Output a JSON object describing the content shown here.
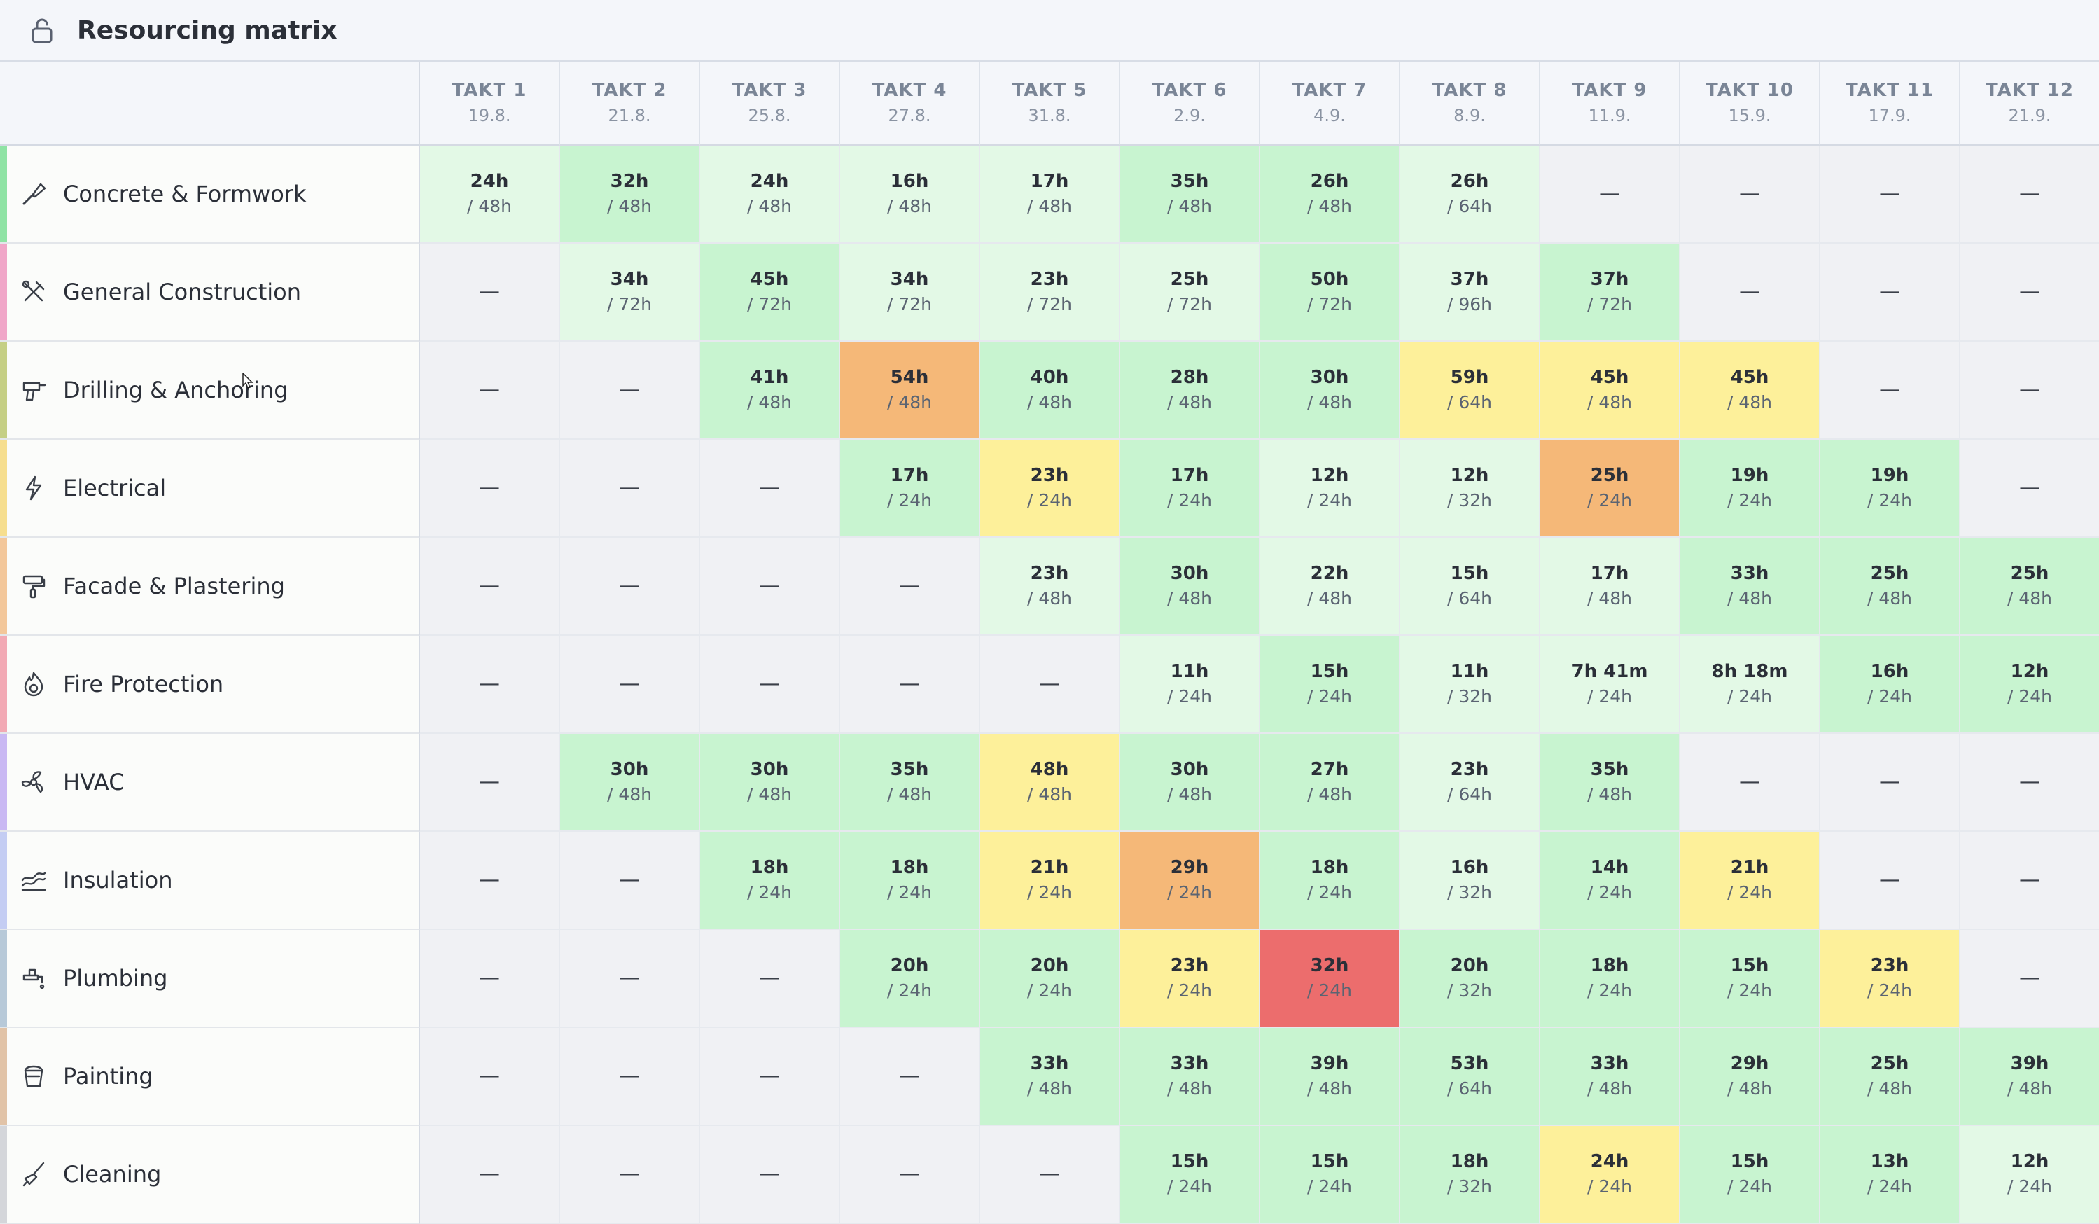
{
  "header": {
    "title": "Resourcing matrix",
    "icon": "unlock-icon"
  },
  "colors": {
    "empty": "#f0f1f4",
    "light_green": "#e3f9e6",
    "green": "#c8f4d0",
    "yellow": "#fdf09a",
    "orange": "#f5b878",
    "red": "#ec6d6d"
  },
  "columns": [
    {
      "name": "TAKT 1",
      "date": "19.8."
    },
    {
      "name": "TAKT 2",
      "date": "21.8."
    },
    {
      "name": "TAKT 3",
      "date": "25.8."
    },
    {
      "name": "TAKT 4",
      "date": "27.8."
    },
    {
      "name": "TAKT 5",
      "date": "31.8."
    },
    {
      "name": "TAKT 6",
      "date": "2.9."
    },
    {
      "name": "TAKT 7",
      "date": "4.9."
    },
    {
      "name": "TAKT 8",
      "date": "8.9."
    },
    {
      "name": "TAKT 9",
      "date": "11.9."
    },
    {
      "name": "TAKT 10",
      "date": "15.9."
    },
    {
      "name": "TAKT 11",
      "date": "17.9."
    },
    {
      "name": "TAKT 12",
      "date": "21.9."
    }
  ],
  "rows": [
    {
      "name": "Concrete & Formwork",
      "icon": "trowel-icon",
      "stripe": "#8fe3a4",
      "cells": [
        {
          "used": "24h",
          "cap": "/ 48h",
          "level": "light_green"
        },
        {
          "used": "32h",
          "cap": "/ 48h",
          "level": "green"
        },
        {
          "used": "24h",
          "cap": "/ 48h",
          "level": "light_green"
        },
        {
          "used": "16h",
          "cap": "/ 48h",
          "level": "light_green"
        },
        {
          "used": "17h",
          "cap": "/ 48h",
          "level": "light_green"
        },
        {
          "used": "35h",
          "cap": "/ 48h",
          "level": "green"
        },
        {
          "used": "26h",
          "cap": "/ 48h",
          "level": "green"
        },
        {
          "used": "26h",
          "cap": "/ 64h",
          "level": "light_green"
        },
        {
          "used": "—",
          "cap": "",
          "level": "empty"
        },
        {
          "used": "—",
          "cap": "",
          "level": "empty"
        },
        {
          "used": "—",
          "cap": "",
          "level": "empty"
        },
        {
          "used": "—",
          "cap": "",
          "level": "empty"
        }
      ]
    },
    {
      "name": "General Construction",
      "icon": "hammer-wrench-icon",
      "stripe": "#f0a6c8",
      "cells": [
        {
          "used": "—",
          "cap": "",
          "level": "empty"
        },
        {
          "used": "34h",
          "cap": "/ 72h",
          "level": "light_green"
        },
        {
          "used": "45h",
          "cap": "/ 72h",
          "level": "green"
        },
        {
          "used": "34h",
          "cap": "/ 72h",
          "level": "light_green"
        },
        {
          "used": "23h",
          "cap": "/ 72h",
          "level": "light_green"
        },
        {
          "used": "25h",
          "cap": "/ 72h",
          "level": "light_green"
        },
        {
          "used": "50h",
          "cap": "/ 72h",
          "level": "green"
        },
        {
          "used": "37h",
          "cap": "/ 96h",
          "level": "light_green"
        },
        {
          "used": "37h",
          "cap": "/ 72h",
          "level": "green"
        },
        {
          "used": "—",
          "cap": "",
          "level": "empty"
        },
        {
          "used": "—",
          "cap": "",
          "level": "empty"
        },
        {
          "used": "—",
          "cap": "",
          "level": "empty"
        }
      ]
    },
    {
      "name": "Drilling & Anchoring",
      "icon": "drill-icon",
      "stripe": "#c5cf84",
      "cells": [
        {
          "used": "—",
          "cap": "",
          "level": "empty"
        },
        {
          "used": "—",
          "cap": "",
          "level": "empty"
        },
        {
          "used": "41h",
          "cap": "/ 48h",
          "level": "green"
        },
        {
          "used": "54h",
          "cap": "/ 48h",
          "level": "orange"
        },
        {
          "used": "40h",
          "cap": "/ 48h",
          "level": "green"
        },
        {
          "used": "28h",
          "cap": "/ 48h",
          "level": "green"
        },
        {
          "used": "30h",
          "cap": "/ 48h",
          "level": "green"
        },
        {
          "used": "59h",
          "cap": "/ 64h",
          "level": "yellow"
        },
        {
          "used": "45h",
          "cap": "/ 48h",
          "level": "yellow"
        },
        {
          "used": "45h",
          "cap": "/ 48h",
          "level": "yellow"
        },
        {
          "used": "—",
          "cap": "",
          "level": "empty"
        },
        {
          "used": "—",
          "cap": "",
          "level": "empty"
        }
      ]
    },
    {
      "name": "Electrical",
      "icon": "lightning-icon",
      "stripe": "#f6de8e",
      "cells": [
        {
          "used": "—",
          "cap": "",
          "level": "empty"
        },
        {
          "used": "—",
          "cap": "",
          "level": "empty"
        },
        {
          "used": "—",
          "cap": "",
          "level": "empty"
        },
        {
          "used": "17h",
          "cap": "/ 24h",
          "level": "green"
        },
        {
          "used": "23h",
          "cap": "/ 24h",
          "level": "yellow"
        },
        {
          "used": "17h",
          "cap": "/ 24h",
          "level": "green"
        },
        {
          "used": "12h",
          "cap": "/ 24h",
          "level": "light_green"
        },
        {
          "used": "12h",
          "cap": "/ 32h",
          "level": "light_green"
        },
        {
          "used": "25h",
          "cap": "/ 24h",
          "level": "orange"
        },
        {
          "used": "19h",
          "cap": "/ 24h",
          "level": "green"
        },
        {
          "used": "19h",
          "cap": "/ 24h",
          "level": "green"
        },
        {
          "used": "—",
          "cap": "",
          "level": "empty"
        }
      ]
    },
    {
      "name": "Facade & Plastering",
      "icon": "paint-roller-icon",
      "stripe": "#f3c79a",
      "cells": [
        {
          "used": "—",
          "cap": "",
          "level": "empty"
        },
        {
          "used": "—",
          "cap": "",
          "level": "empty"
        },
        {
          "used": "—",
          "cap": "",
          "level": "empty"
        },
        {
          "used": "—",
          "cap": "",
          "level": "empty"
        },
        {
          "used": "23h",
          "cap": "/ 48h",
          "level": "light_green"
        },
        {
          "used": "30h",
          "cap": "/ 48h",
          "level": "green"
        },
        {
          "used": "22h",
          "cap": "/ 48h",
          "level": "light_green"
        },
        {
          "used": "15h",
          "cap": "/ 64h",
          "level": "light_green"
        },
        {
          "used": "17h",
          "cap": "/ 48h",
          "level": "light_green"
        },
        {
          "used": "33h",
          "cap": "/ 48h",
          "level": "green"
        },
        {
          "used": "25h",
          "cap": "/ 48h",
          "level": "green"
        },
        {
          "used": "25h",
          "cap": "/ 48h",
          "level": "green"
        }
      ]
    },
    {
      "name": "Fire Protection",
      "icon": "flame-icon",
      "stripe": "#f2a9b4",
      "cells": [
        {
          "used": "—",
          "cap": "",
          "level": "empty"
        },
        {
          "used": "—",
          "cap": "",
          "level": "empty"
        },
        {
          "used": "—",
          "cap": "",
          "level": "empty"
        },
        {
          "used": "—",
          "cap": "",
          "level": "empty"
        },
        {
          "used": "—",
          "cap": "",
          "level": "empty"
        },
        {
          "used": "11h",
          "cap": "/ 24h",
          "level": "light_green"
        },
        {
          "used": "15h",
          "cap": "/ 24h",
          "level": "green"
        },
        {
          "used": "11h",
          "cap": "/ 32h",
          "level": "light_green"
        },
        {
          "used": "7h 41m",
          "cap": "/ 24h",
          "level": "light_green"
        },
        {
          "used": "8h 18m",
          "cap": "/ 24h",
          "level": "light_green"
        },
        {
          "used": "16h",
          "cap": "/ 24h",
          "level": "green"
        },
        {
          "used": "12h",
          "cap": "/ 24h",
          "level": "green"
        }
      ]
    },
    {
      "name": "HVAC",
      "icon": "fan-icon",
      "stripe": "#c9b8f3",
      "cells": [
        {
          "used": "—",
          "cap": "",
          "level": "empty"
        },
        {
          "used": "30h",
          "cap": "/ 48h",
          "level": "green"
        },
        {
          "used": "30h",
          "cap": "/ 48h",
          "level": "green"
        },
        {
          "used": "35h",
          "cap": "/ 48h",
          "level": "green"
        },
        {
          "used": "48h",
          "cap": "/ 48h",
          "level": "yellow"
        },
        {
          "used": "30h",
          "cap": "/ 48h",
          "level": "green"
        },
        {
          "used": "27h",
          "cap": "/ 48h",
          "level": "green"
        },
        {
          "used": "23h",
          "cap": "/ 64h",
          "level": "light_green"
        },
        {
          "used": "35h",
          "cap": "/ 48h",
          "level": "green"
        },
        {
          "used": "—",
          "cap": "",
          "level": "empty"
        },
        {
          "used": "—",
          "cap": "",
          "level": "empty"
        },
        {
          "used": "—",
          "cap": "",
          "level": "empty"
        }
      ]
    },
    {
      "name": "Insulation",
      "icon": "insulation-icon",
      "stripe": "#c4cdf3",
      "cells": [
        {
          "used": "—",
          "cap": "",
          "level": "empty"
        },
        {
          "used": "—",
          "cap": "",
          "level": "empty"
        },
        {
          "used": "18h",
          "cap": "/ 24h",
          "level": "green"
        },
        {
          "used": "18h",
          "cap": "/ 24h",
          "level": "green"
        },
        {
          "used": "21h",
          "cap": "/ 24h",
          "level": "yellow"
        },
        {
          "used": "29h",
          "cap": "/ 24h",
          "level": "orange"
        },
        {
          "used": "18h",
          "cap": "/ 24h",
          "level": "green"
        },
        {
          "used": "16h",
          "cap": "/ 32h",
          "level": "light_green"
        },
        {
          "used": "14h",
          "cap": "/ 24h",
          "level": "green"
        },
        {
          "used": "21h",
          "cap": "/ 24h",
          "level": "yellow"
        },
        {
          "used": "—",
          "cap": "",
          "level": "empty"
        },
        {
          "used": "—",
          "cap": "",
          "level": "empty"
        }
      ]
    },
    {
      "name": "Plumbing",
      "icon": "faucet-icon",
      "stripe": "#b7c9d8",
      "cells": [
        {
          "used": "—",
          "cap": "",
          "level": "empty"
        },
        {
          "used": "—",
          "cap": "",
          "level": "empty"
        },
        {
          "used": "—",
          "cap": "",
          "level": "empty"
        },
        {
          "used": "20h",
          "cap": "/ 24h",
          "level": "green"
        },
        {
          "used": "20h",
          "cap": "/ 24h",
          "level": "green"
        },
        {
          "used": "23h",
          "cap": "/ 24h",
          "level": "yellow"
        },
        {
          "used": "32h",
          "cap": "/ 24h",
          "level": "red"
        },
        {
          "used": "20h",
          "cap": "/ 32h",
          "level": "green"
        },
        {
          "used": "18h",
          "cap": "/ 24h",
          "level": "green"
        },
        {
          "used": "15h",
          "cap": "/ 24h",
          "level": "green"
        },
        {
          "used": "23h",
          "cap": "/ 24h",
          "level": "yellow"
        },
        {
          "used": "—",
          "cap": "",
          "level": "empty"
        }
      ]
    },
    {
      "name": "Painting",
      "icon": "paint-bucket-icon",
      "stripe": "#e1c3a7",
      "cells": [
        {
          "used": "—",
          "cap": "",
          "level": "empty"
        },
        {
          "used": "—",
          "cap": "",
          "level": "empty"
        },
        {
          "used": "—",
          "cap": "",
          "level": "empty"
        },
        {
          "used": "—",
          "cap": "",
          "level": "empty"
        },
        {
          "used": "33h",
          "cap": "/ 48h",
          "level": "green"
        },
        {
          "used": "33h",
          "cap": "/ 48h",
          "level": "green"
        },
        {
          "used": "39h",
          "cap": "/ 48h",
          "level": "green"
        },
        {
          "used": "53h",
          "cap": "/ 64h",
          "level": "green"
        },
        {
          "used": "33h",
          "cap": "/ 48h",
          "level": "green"
        },
        {
          "used": "29h",
          "cap": "/ 48h",
          "level": "green"
        },
        {
          "used": "25h",
          "cap": "/ 48h",
          "level": "green"
        },
        {
          "used": "39h",
          "cap": "/ 48h",
          "level": "green"
        }
      ]
    },
    {
      "name": "Cleaning",
      "icon": "broom-icon",
      "stripe": "#d4d6da",
      "cells": [
        {
          "used": "—",
          "cap": "",
          "level": "empty"
        },
        {
          "used": "—",
          "cap": "",
          "level": "empty"
        },
        {
          "used": "—",
          "cap": "",
          "level": "empty"
        },
        {
          "used": "—",
          "cap": "",
          "level": "empty"
        },
        {
          "used": "—",
          "cap": "",
          "level": "empty"
        },
        {
          "used": "15h",
          "cap": "/ 24h",
          "level": "green"
        },
        {
          "used": "15h",
          "cap": "/ 24h",
          "level": "green"
        },
        {
          "used": "18h",
          "cap": "/ 32h",
          "level": "green"
        },
        {
          "used": "24h",
          "cap": "/ 24h",
          "level": "yellow"
        },
        {
          "used": "15h",
          "cap": "/ 24h",
          "level": "green"
        },
        {
          "used": "13h",
          "cap": "/ 24h",
          "level": "green"
        },
        {
          "used": "12h",
          "cap": "/ 24h",
          "level": "light_green"
        }
      ]
    }
  ]
}
